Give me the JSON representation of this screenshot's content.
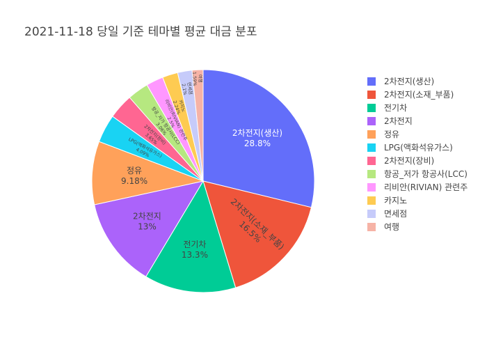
{
  "chart_data": {
    "type": "pie",
    "title": "2021-11-18 당일 기준 테마별 평균 대금 분포",
    "legend_position": "right",
    "slices": [
      {
        "label": "2차전지(생산)",
        "percent": 28.8,
        "display": "28.8%",
        "color": "#636efa"
      },
      {
        "label": "2차전지(소재_부품)",
        "percent": 16.5,
        "display": "16.5%",
        "color": "#EF553B"
      },
      {
        "label": "전기차",
        "percent": 13.3,
        "display": "13.3%",
        "color": "#00cc96"
      },
      {
        "label": "2차전지",
        "percent": 13.0,
        "display": "13%",
        "color": "#ab63fa"
      },
      {
        "label": "정유",
        "percent": 9.18,
        "display": "9.18%",
        "color": "#FFA15A"
      },
      {
        "label": "LPG(액화석유가스)",
        "percent": 4.09,
        "display": "4.09%",
        "color": "#19d3f3"
      },
      {
        "label": "2차전지(장비)",
        "percent": 3.65,
        "display": "3.65%",
        "color": "#FF6692"
      },
      {
        "label": "항공_저가 항공사(LCC)",
        "percent": 3.06,
        "display": "3.06%",
        "color": "#B6E880"
      },
      {
        "label": "리비안(RIVIAN) 관련주",
        "percent": 2.5,
        "display": "2.5%",
        "color": "#FF97FF"
      },
      {
        "label": "카지노",
        "percent": 2.24,
        "display": "2.24%",
        "color": "#FECB52"
      },
      {
        "label": "면세점",
        "percent": 2.1,
        "display": "2.1%",
        "color": "#c6cbfa"
      },
      {
        "label": "여행",
        "percent": 1.59,
        "display": "1.59%",
        "color": "#f6b3a6"
      }
    ]
  }
}
